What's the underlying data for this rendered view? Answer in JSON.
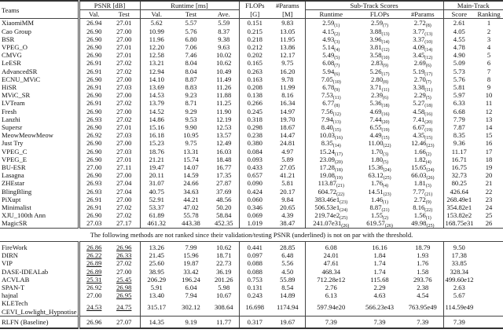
{
  "header": {
    "teams": "Teams",
    "psnr": "PSNR [dB]",
    "runtime": "Runtime [ms]",
    "flops_top": "FLOPs",
    "flops_unit": "[G]",
    "params_top": "#Params",
    "params_unit": "[M]",
    "subtrack": "Sub-Track Scores",
    "maintrack": "Main-Track",
    "val": "Val.",
    "test": "Test",
    "ave": "Ave.",
    "sub_runtime": "Runtime",
    "sub_flops": "FLOPs",
    "sub_params": "#Params",
    "score": "Score",
    "ranking": "Ranking"
  },
  "ranked_rows": [
    {
      "team": "XiaomiMM",
      "psnr_val": "26.94",
      "psnr_test": "27.01",
      "rt_val": "5.62",
      "rt_test": "5.57",
      "rt_ave": "5.59",
      "flops": "0.151",
      "params": "9.83",
      "s_rt": "2.59",
      "s_rt_rank": "(1)",
      "s_fl": "2.59",
      "s_fl_rank": "(7)",
      "s_pa": "2.72",
      "s_pa_rank": "(8)",
      "score": "2.61",
      "ranking": "1"
    },
    {
      "team": "Cao Group",
      "psnr_val": "26.90",
      "psnr_test": "27.00",
      "rt_val": "10.99",
      "rt_test": "5.76",
      "rt_ave": "8.37",
      "flops": "0.215",
      "params": "13.05",
      "s_rt": "4.15",
      "s_rt_rank": "(2)",
      "s_fl": "3.88",
      "s_fl_rank": "(13)",
      "s_pa": "3.77",
      "s_pa_rank": "(13)",
      "score": "4.05",
      "ranking": "2"
    },
    {
      "team": "BSR",
      "psnr_val": "26.90",
      "psnr_test": "27.00",
      "rt_val": "11.96",
      "rt_test": "6.80",
      "rt_ave": "9.38",
      "flops": "0.218",
      "params": "11.95",
      "s_rt": "4.93",
      "s_rt_rank": "(3)",
      "s_fl": "3.96",
      "s_fl_rank": "(14)",
      "s_pa": "3.37",
      "s_pa_rank": "(10)",
      "score": "4.55",
      "ranking": "3"
    },
    {
      "team": "VPEG_O",
      "psnr_val": "26.90",
      "psnr_test": "27.01",
      "rt_val": "12.20",
      "rt_test": "7.06",
      "rt_ave": "9.63",
      "flops": "0.212",
      "params": "13.86",
      "s_rt": "5.14",
      "s_rt_rank": "(4)",
      "s_fl": "3.81",
      "s_fl_rank": "(12)",
      "s_pa": "4.09",
      "s_pa_rank": "(14)",
      "score": "4.78",
      "ranking": "4"
    },
    {
      "team": "CMVG",
      "psnr_val": "26.90",
      "psnr_test": "27.01",
      "rt_val": "12.58",
      "rt_test": "7.46",
      "rt_ave": "10.02",
      "flops": "0.202",
      "params": "12.17",
      "s_rt": "5.49",
      "s_rt_rank": "(5)",
      "s_fl": "3.58",
      "s_fl_rank": "(10)",
      "s_pa": "3.45",
      "s_pa_rank": "(12)",
      "score": "4.90",
      "ranking": "5"
    },
    {
      "team": "LeESR",
      "psnr_val": "26.91",
      "psnr_test": "27.02",
      "rt_val": "13.21",
      "rt_test": "8.04",
      "rt_ave": "10.62",
      "flops": "0.165",
      "params": "9.75",
      "s_rt": "6.08",
      "s_rt_rank": "(7)",
      "s_fl": "2.83",
      "s_fl_rank": "(9)",
      "s_pa": "2.69",
      "s_pa_rank": "(6)",
      "score": "5.09",
      "ranking": "6"
    },
    {
      "team": "AdvancedSR",
      "psnr_val": "26.91",
      "psnr_test": "27.02",
      "rt_val": "12.94",
      "rt_test": "8.04",
      "rt_ave": "10.49",
      "flops": "0.263",
      "params": "16.20",
      "s_rt": "5.94",
      "s_rt_rank": "(6)",
      "s_fl": "5.26",
      "s_fl_rank": "(17)",
      "s_pa": "5.19",
      "s_pa_rank": "(17)",
      "score": "5.73",
      "ranking": "7"
    },
    {
      "team": "ECNU_MViC",
      "psnr_val": "26.90",
      "psnr_test": "27.00",
      "rt_val": "14.10",
      "rt_test": "8.87",
      "rt_ave": "11.49",
      "flops": "0.163",
      "params": "9.78",
      "s_rt": "7.05",
      "s_rt_rank": "(10)",
      "s_fl": "2.80",
      "s_fl_rank": "(8)",
      "s_pa": "2.70",
      "s_pa_rank": "(7)",
      "score": "5.76",
      "ranking": "8"
    },
    {
      "team": "HiSR",
      "psnr_val": "26.91",
      "psnr_test": "27.03",
      "rt_val": "13.69",
      "rt_test": "8.83",
      "rt_ave": "11.26",
      "flops": "0.208",
      "params": "11.99",
      "s_rt": "6.78",
      "s_rt_rank": "(9)",
      "s_fl": "3.71",
      "s_fl_rank": "(11)",
      "s_pa": "3.38",
      "s_pa_rank": "(11)",
      "score": "5.81",
      "ranking": "9"
    },
    {
      "team": "MViC_SR",
      "psnr_val": "26.90",
      "psnr_test": "27.00",
      "rt_val": "14.53",
      "rt_test": "9.23",
      "rt_ave": "11.88",
      "flops": "0.138",
      "params": "8.16",
      "s_rt": "7.53",
      "s_rt_rank": "(11)",
      "s_fl": "2.39",
      "s_fl_rank": "(6)",
      "s_pa": "2.29",
      "s_pa_rank": "(5)",
      "score": "5.97",
      "ranking": "10"
    },
    {
      "team": "LVTeam",
      "psnr_val": "26.91",
      "psnr_test": "27.02",
      "rt_val": "13.79",
      "rt_test": "8.71",
      "rt_ave": "11.25",
      "flops": "0.266",
      "params": "16.34",
      "s_rt": "6.77",
      "s_rt_rank": "(8)",
      "s_fl": "5.36",
      "s_fl_rank": "(18)",
      "s_pa": "5.27",
      "s_pa_rank": "(18)",
      "score": "6.33",
      "ranking": "11"
    },
    {
      "team": "Fresh",
      "psnr_val": "26.90",
      "psnr_test": "27.00",
      "rt_val": "14.52",
      "rt_test": "9.29",
      "rt_ave": "11.90",
      "flops": "0.245",
      "params": "14.97",
      "s_rt": "7.56",
      "s_rt_rank": "(12)",
      "s_fl": "4.69",
      "s_fl_rank": "(16)",
      "s_pa": "4.58",
      "s_pa_rank": "(16)",
      "score": "6.68",
      "ranking": "12"
    },
    {
      "team": "Lanzhi",
      "psnr_val": "26.93",
      "psnr_test": "27.02",
      "rt_val": "14.86",
      "rt_test": "9.53",
      "rt_ave": "12.19",
      "flops": "0.318",
      "params": "19.70",
      "s_rt": "7.94",
      "s_rt_rank": "(13)",
      "s_fl": "7.44",
      "s_fl_rank": "(20)",
      "s_pa": "7.41",
      "s_pa_rank": "(20)",
      "score": "7.79",
      "ranking": "13"
    },
    {
      "team": "Supersr",
      "psnr_val": "26.90",
      "psnr_test": "27.01",
      "rt_val": "15.16",
      "rt_test": "9.90",
      "rt_ave": "12.53",
      "flops": "0.298",
      "params": "18.67",
      "s_rt": "8.40",
      "s_rt_rank": "(15)",
      "s_fl": "6.55",
      "s_fl_rank": "(19)",
      "s_pa": "6.67",
      "s_pa_rank": "(19)",
      "score": "7.87",
      "ranking": "14"
    },
    {
      "team": "MeowMeowMeow",
      "psnr_val": "26.92",
      "psnr_test": "27.03",
      "rt_val": "16.18",
      "rt_test": "10.95",
      "rt_ave": "13.57",
      "flops": "0.238",
      "params": "14.47",
      "s_rt": "10.03",
      "s_rt_rank": "(16)",
      "s_fl": "4.49",
      "s_fl_rank": "(15)",
      "s_pa": "4.35",
      "s_pa_rank": "(15)",
      "score": "8.35",
      "ranking": "15"
    },
    {
      "team": "Just Try",
      "psnr_val": "26.90",
      "psnr_test": "27.00",
      "rt_val": "15.23",
      "rt_test": "9.75",
      "rt_ave": "12.49",
      "flops": "0.380",
      "params": "24.81",
      "s_rt": "8.35",
      "s_rt_rank": "(14)",
      "s_fl": "11.00",
      "s_fl_rank": "(22)",
      "s_pa": "12.46",
      "s_pa_rank": "(23)",
      "score": "9.36",
      "ranking": "16"
    },
    {
      "team": "VPEG_C",
      "psnr_val": "26.90",
      "psnr_test": "27.03",
      "rt_val": "18.76",
      "rt_test": "13.31",
      "rt_ave": "16.03",
      "flops": "0.084",
      "params": "4.97",
      "s_rt": "15.24",
      "s_rt_rank": "(17)",
      "s_fl": "1.70",
      "s_fl_rank": "(3)",
      "s_pa": "1.66",
      "s_pa_rank": "(2)",
      "score": "11.17",
      "ranking": "17"
    },
    {
      "team": "VPEG_E",
      "psnr_val": "26.90",
      "psnr_test": "27.01",
      "rt_val": "21.21",
      "rt_test": "15.74",
      "rt_ave": "18.48",
      "flops": "0.093",
      "params": "5.89",
      "s_rt": "23.09",
      "s_rt_rank": "(20)",
      "s_fl": "1.80",
      "s_fl_rank": "(5)",
      "s_pa": "1.82",
      "s_pa_rank": "(4)",
      "score": "16.71",
      "ranking": "18"
    },
    {
      "team": "BU-ESR",
      "psnr_val": "27.00",
      "psnr_test": "27.11",
      "rt_val": "19.47",
      "rt_test": "14.07",
      "rt_ave": "16.77",
      "flops": "0.433",
      "params": "27.05",
      "s_rt": "17.28",
      "s_rt_rank": "(18)",
      "s_fl": "15.36",
      "s_fl_rank": "(24)",
      "s_pa": "15.65",
      "s_pa_rank": "(24)",
      "score": "16.75",
      "ranking": "19"
    },
    {
      "team": "Lasagna",
      "psnr_val": "26.90",
      "psnr_test": "27.00",
      "rt_val": "20.11",
      "rt_test": "14.59",
      "rt_ave": "17.35",
      "flops": "0.657",
      "params": "41.21",
      "s_rt": "19.08",
      "s_rt_rank": "(19)",
      "s_fl": "63.12",
      "s_fl_rank": "(25)",
      "s_pa": "66.03",
      "s_pa_rank": "(26)",
      "score": "32.73",
      "ranking": "20"
    },
    {
      "team": "ZHEstar",
      "psnr_val": "26.93",
      "psnr_test": "27.04",
      "rt_val": "31.07",
      "rt_test": "24.66",
      "rt_ave": "27.87",
      "flops": "0.090",
      "params": "5.81",
      "s_rt": "113.87",
      "s_rt_rank": "(21)",
      "s_fl": "1.76",
      "s_fl_rank": "(4)",
      "s_pa": "1.81",
      "s_pa_rank": "(3)",
      "score": "80.25",
      "ranking": "21"
    },
    {
      "team": "BlingBling",
      "psnr_val": "26.93",
      "psnr_test": "27.04",
      "rt_val": "40.75",
      "rt_test": "34.63",
      "rt_ave": "37.69",
      "flops": "0.424",
      "params": "20.17",
      "s_rt": "604.72",
      "s_rt_rank": "(22)",
      "s_fl": "14.51",
      "s_fl_rank": "(23)",
      "s_pa": "7.77",
      "s_pa_rank": "(21)",
      "score": "426.64",
      "ranking": "22"
    },
    {
      "team": "PiXupt",
      "psnr_val": "26.91",
      "psnr_test": "27.00",
      "rt_val": "52.91",
      "rt_test": "44.21",
      "rt_ave": "48.56",
      "flops": "0.060",
      "params": "9.84",
      "s_rt": "383.46e1",
      "s_rt_rank": "(23)",
      "s_fl": "1.46",
      "s_fl_rank": "(1)",
      "s_pa": "2.72",
      "s_pa_rank": "(9)",
      "score": "268.49e1",
      "ranking": "23"
    },
    {
      "team": "Minimalist",
      "psnr_val": "26.91",
      "psnr_test": "27.02",
      "rt_val": "53.37",
      "rt_test": "47.02",
      "rt_ave": "50.20",
      "flops": "0.346",
      "params": "20.65",
      "s_rt": "506.53e1",
      "s_rt_rank": "(24)",
      "s_fl": "8.87",
      "s_fl_rank": "(21)",
      "s_pa": "8.16",
      "s_pa_rank": "(22)",
      "score": "354.82e1",
      "ranking": "24"
    },
    {
      "team": "XJU_100th Ann",
      "psnr_val": "26.90",
      "psnr_test": "27.02",
      "rt_val": "61.89",
      "rt_test": "55.78",
      "rt_ave": "58.84",
      "flops": "0.069",
      "params": "4.39",
      "s_rt": "219.74e2",
      "s_rt_rank": "(25)",
      "s_fl": "1.55",
      "s_fl_rank": "(2)",
      "s_pa": "1.56",
      "s_pa_rank": "(1)",
      "score": "153.82e2",
      "ranking": "25"
    },
    {
      "team": "MagicSR",
      "psnr_val": "27.03",
      "psnr_test": "27.17",
      "rt_val": "461.32",
      "rt_test": "443.38",
      "rt_ave": "452.35",
      "flops": "1.019",
      "params": "38.47",
      "s_rt": "241.07e31",
      "s_rt_rank": "(26)",
      "s_fl": "619.57",
      "s_fl_rank": "(26)",
      "s_pa": "49.98",
      "s_pa_rank": "(25)",
      "score": "168.75e31",
      "ranking": "26"
    }
  ],
  "note": "The following methods are not ranked since their validation/testing PSNR (underlined) is not on par with the threshold.",
  "unranked_rows": [
    {
      "team": "FireWork",
      "team2": "",
      "psnr_val": "26.86",
      "psnr_test": "26.96",
      "u_val": true,
      "u_test": true,
      "rt_val": "13.26",
      "rt_test": "7.99",
      "rt_ave": "10.62",
      "flops": "0.441",
      "params": "28.85",
      "s_rt": "6.08",
      "s_fl": "16.16",
      "s_pa": "18.79",
      "score": "9.50"
    },
    {
      "team": "DIRN",
      "team2": "",
      "psnr_val": "26.22",
      "psnr_test": "26.33",
      "u_val": true,
      "u_test": true,
      "rt_val": "21.45",
      "rt_test": "15.96",
      "rt_ave": "18.71",
      "flops": "0.097",
      "params": "6.48",
      "s_rt": "24.01",
      "s_fl": "1.84",
      "s_pa": "1.93",
      "score": "17.38"
    },
    {
      "team": "VIP",
      "team2": "",
      "psnr_val": "26.89",
      "psnr_test": "27.02",
      "u_val": true,
      "u_test": false,
      "rt_val": "25.60",
      "rt_test": "19.87",
      "rt_ave": "22.73",
      "flops": "0.088",
      "params": "5.56",
      "s_rt": "47.61",
      "s_fl": "1.74",
      "s_pa": "1.76",
      "score": "33.85"
    },
    {
      "team": "DASE-IDEALab",
      "team2": "",
      "psnr_val": "26.89",
      "psnr_test": "27.00",
      "u_val": true,
      "u_test": false,
      "rt_val": "38.95",
      "rt_test": "33.42",
      "rt_ave": "36.19",
      "flops": "0.088",
      "params": "4.50",
      "s_rt": "468.34",
      "s_fl": "1.74",
      "s_pa": "1.58",
      "score": "328.34"
    },
    {
      "team": "ACVLAB",
      "team2": "",
      "psnr_val": "25.31",
      "psnr_test": "25.45",
      "u_val": true,
      "u_test": true,
      "rt_val": "206.29",
      "rt_test": "196.24",
      "rt_ave": "201.26",
      "flops": "0.753",
      "params": "55.89",
      "s_rt": "712.28e12",
      "s_fl": "115.68",
      "s_pa": "293.76",
      "score": "499.60e12"
    },
    {
      "team": "SPAN-T",
      "team2": "",
      "psnr_val": "26.92",
      "psnr_test": "26.98",
      "u_val": false,
      "u_test": true,
      "rt_val": "5.91",
      "rt_test": "6.04",
      "rt_ave": "5.98",
      "flops": "0.131",
      "params": "8.54",
      "s_rt": "2.76",
      "s_fl": "2.29",
      "s_pa": "2.38",
      "score": "2.63"
    },
    {
      "team": "hajnal",
      "team2": "",
      "psnr_val": "27.00",
      "psnr_test": "26.95",
      "u_val": false,
      "u_test": true,
      "rt_val": "13.40",
      "rt_test": "7.94",
      "rt_ave": "10.67",
      "flops": "0.243",
      "params": "14.89",
      "s_rt": "6.13",
      "s_fl": "4.63",
      "s_pa": "4.54",
      "score": "5.67"
    },
    {
      "team": "KLETech",
      "team2": "CEVI_Lowlight_Hypnotise",
      "psnr_val": "24.53",
      "psnr_test": "24.75",
      "u_val": true,
      "u_test": true,
      "rt_val": "315.17",
      "rt_test": "302.12",
      "rt_ave": "308.64",
      "flops": "16.698",
      "params": "1174.94",
      "s_rt": "597.94e20",
      "s_fl": "566.23e43",
      "s_pa": "763.95e49",
      "score": "114.59e49"
    }
  ],
  "baseline": {
    "team": "RLFN (Baseline)",
    "psnr_val": "26.96",
    "psnr_test": "27.07",
    "rt_val": "14.35",
    "rt_test": "9.19",
    "rt_ave": "11.77",
    "flops": "0.317",
    "params": "19.67",
    "s_rt": "7.39",
    "s_fl": "7.39",
    "s_pa": "7.39",
    "score": "7.39"
  }
}
